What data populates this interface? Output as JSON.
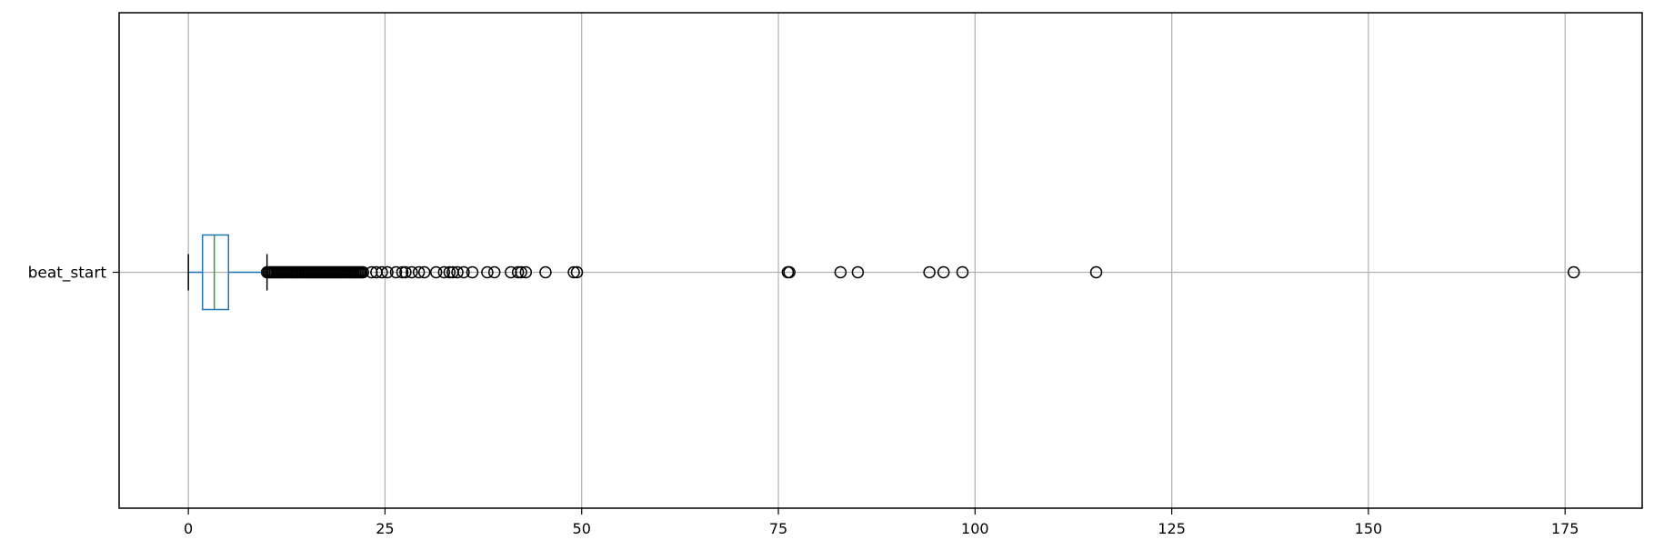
{
  "chart_data": {
    "type": "boxplot",
    "orientation": "horizontal",
    "categories": [
      "beat_start"
    ],
    "xlim": [
      -8.8,
      184.8
    ],
    "x_ticks": [
      0,
      25,
      50,
      75,
      100,
      125,
      150,
      175
    ],
    "x_tick_labels": [
      "0",
      "25",
      "50",
      "75",
      "100",
      "125",
      "150",
      "175"
    ],
    "grid": true,
    "box": {
      "whisker_low": 0.0,
      "q1": 1.8,
      "median": 3.3,
      "q3": 5.1,
      "whisker_high": 10.0
    },
    "outliers": [
      10.0,
      10.2,
      10.4,
      10.6,
      10.8,
      11.0,
      11.2,
      11.4,
      11.6,
      11.8,
      12.0,
      12.2,
      12.4,
      12.6,
      12.8,
      13.0,
      13.2,
      13.4,
      13.6,
      13.8,
      14.0,
      14.2,
      14.4,
      14.6,
      14.8,
      15.0,
      15.2,
      15.4,
      15.6,
      15.8,
      16.0,
      16.2,
      16.4,
      16.6,
      16.8,
      17.0,
      17.2,
      17.4,
      17.6,
      17.8,
      18.0,
      18.2,
      18.4,
      18.6,
      18.8,
      19.0,
      19.2,
      19.4,
      19.6,
      19.8,
      20.0,
      20.2,
      20.4,
      20.6,
      20.8,
      21.0,
      21.2,
      21.4,
      21.6,
      21.8,
      22.0,
      22.2,
      23.3,
      23.9,
      24.6,
      25.3,
      26.4,
      27.2,
      27.6,
      28.4,
      29.3,
      30.0,
      31.5,
      32.5,
      33.2,
      33.6,
      34.2,
      35.0,
      36.1,
      38.0,
      38.9,
      41.0,
      41.9,
      42.3,
      42.9,
      45.4,
      49.0,
      49.4,
      76.2,
      76.4,
      82.9,
      85.1,
      94.2,
      96.0,
      98.4,
      115.4,
      176.1
    ],
    "colors": {
      "box": "#1f77b4",
      "median": "#2ca02c",
      "whisker_cap": "#000000",
      "outlier_edge": "#000000",
      "grid": "#b0b0b0",
      "frame": "#000000"
    }
  }
}
